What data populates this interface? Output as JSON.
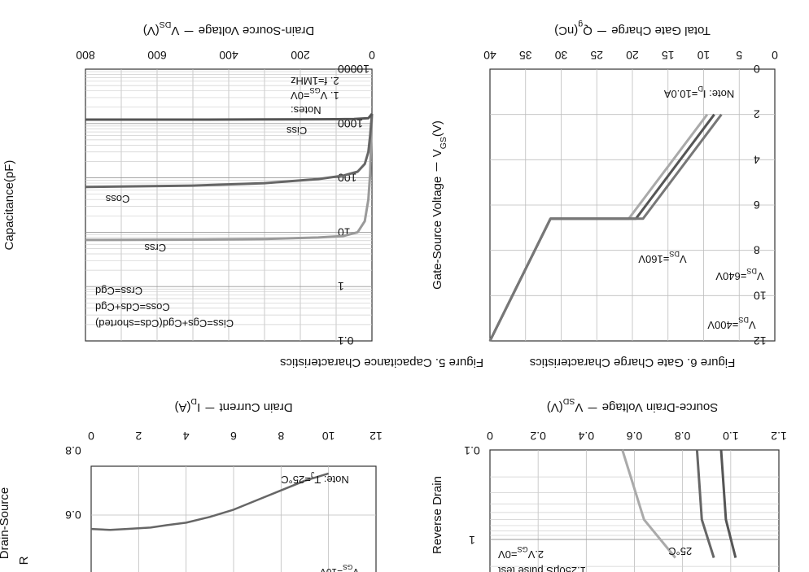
{
  "chart_data": [
    {
      "id": "fig5",
      "type": "line",
      "caption": "Figure 5. Capacitance Characteristics",
      "xlabel": "Drain-Source Voltage － V",
      "xlabel_sub": "DS",
      "xlabel_unit": "(V)",
      "ylabel": "Capacitance(pF)",
      "x_ticks": [
        "0",
        "200",
        "400",
        "600",
        "800"
      ],
      "y_ticks": [
        "0.1",
        "1",
        "10",
        "100",
        "1000",
        "10000"
      ],
      "xlim": [
        0,
        800
      ],
      "ylim": [
        0.1,
        10000
      ],
      "yscale": "log",
      "y_inverted": true,
      "notes": [
        "Notes:",
        "1. V",
        "GS",
        "=0V",
        "2. f=1MHz"
      ],
      "legend": [
        "Ciss=Cgs+Cgd(Cds=shorted)",
        "Coss=Cds+Cgd",
        "Crss=Cgd"
      ],
      "series": [
        {
          "name": "Crss",
          "color": "#9a9a9a",
          "x": [
            0,
            5,
            10,
            20,
            40,
            80,
            150,
            300,
            500,
            800
          ],
          "y": [
            1500,
            120,
            40,
            16,
            10,
            8.5,
            8,
            7.5,
            7.3,
            7.2
          ]
        },
        {
          "name": "Coss",
          "color": "#666666",
          "x": [
            0,
            5,
            10,
            20,
            40,
            80,
            150,
            300,
            500,
            800
          ],
          "y": [
            1500,
            600,
            300,
            180,
            130,
            110,
            95,
            80,
            72,
            68
          ]
        },
        {
          "name": "Ciss",
          "color": "#555555",
          "x": [
            0,
            10,
            50,
            100,
            300,
            500,
            800
          ],
          "y": [
            1500,
            1250,
            1210,
            1200,
            1190,
            1180,
            1180
          ]
        }
      ],
      "labels": [
        {
          "text": "Crss",
          "x": 605,
          "y": 7
        },
        {
          "text": "Coss",
          "x": 710,
          "y": 55
        },
        {
          "text": "Ciss",
          "x": 210,
          "y": 1000
        }
      ]
    },
    {
      "id": "fig6",
      "type": "line",
      "caption": "Figure 6. Gate Charge Characteristics",
      "xlabel": "Total Gate Charge － Q",
      "xlabel_sub": "g",
      "xlabel_unit": "(nC)",
      "ylabel": "Gate-Source Voltage － V",
      "ylabel_sub": "GS",
      "ylabel_unit": "(V)",
      "x_ticks": [
        "0",
        "5",
        "10",
        "15",
        "20",
        "25",
        "30",
        "35",
        "40"
      ],
      "y_ticks": [
        "0",
        "2",
        "4",
        "6",
        "8",
        "10",
        "12"
      ],
      "xlim": [
        0,
        40
      ],
      "ylim": [
        0,
        12
      ],
      "y_inverted": true,
      "note": "Note: I",
      "note_sub": "D",
      "note_val": "=10.0A",
      "series": [
        {
          "name": "V",
          "name_sub": "DS",
          "name_val": "=160V",
          "color": "#aaaaaa",
          "x": [
            0,
            8.5,
            19.5,
            30.5
          ],
          "y": [
            0,
            5.4,
            5.4,
            10.0
          ]
        },
        {
          "name": "V",
          "name_sub": "DS",
          "name_val": "=400V",
          "color": "#555555",
          "x": [
            0,
            8.5,
            20.5,
            31.5
          ],
          "y": [
            0,
            5.4,
            5.4,
            10.0
          ]
        },
        {
          "name": "V",
          "name_sub": "DS",
          "name_val": "=640V",
          "color": "#777777",
          "x": [
            0,
            8.5,
            21.5,
            32.5
          ],
          "y": [
            0,
            5.4,
            5.4,
            10.0
          ]
        }
      ]
    },
    {
      "id": "fig7",
      "type": "line",
      "xlabel": "Drain Current － I",
      "xlabel_sub": "D",
      "xlabel_unit": "(A)",
      "ylabel": "Drain-Source",
      "ylabel2": "R",
      "x_ticks": [
        "0",
        "2",
        "4",
        "6",
        "8",
        "10",
        "12"
      ],
      "y_ticks": [
        "0.8",
        "0.6"
      ],
      "xlim": [
        0,
        12
      ],
      "note": "Note: T",
      "note_sub": "J",
      "note_val": "=25°C",
      "series": [
        {
          "name": "V",
          "name_sub": "GS",
          "name_val": "=10V",
          "color": "#666666",
          "x": [
            0,
            0.8,
            1.5,
            2.5,
            3.2,
            4,
            5,
            6,
            7,
            8,
            9,
            10
          ],
          "y": [
            0.63,
            0.632,
            0.63,
            0.627,
            0.622,
            0.617,
            0.605,
            0.59,
            0.57,
            0.55,
            0.53,
            0.515
          ]
        }
      ]
    },
    {
      "id": "fig8",
      "type": "line",
      "xlabel": "Source-Drain Voltage － V",
      "xlabel_sub": "SD",
      "xlabel_unit": "(V)",
      "ylabel": "Reverse Drain",
      "x_ticks": [
        "0",
        "0.2",
        "0.4",
        "0.6",
        "0.8",
        "1.0",
        "1.2"
      ],
      "y_ticks": [
        "0.1",
        "1"
      ],
      "xlim": [
        0,
        1.2
      ],
      "notes": [
        "1.250μS pulse test",
        "2.V",
        "GS",
        "=0V"
      ],
      "series": [
        {
          "name": "",
          "color": "#aaaaaa",
          "x": [
            0.77,
            0.64,
            0.55
          ],
          "y": [
            1.6,
            0.6,
            0.1
          ]
        },
        {
          "name": "25°C",
          "color": "#666666",
          "x": [
            0.93,
            0.88,
            0.86
          ],
          "y": [
            1.6,
            0.6,
            0.1
          ]
        },
        {
          "name": "",
          "color": "#555555",
          "x": [
            1.02,
            0.98,
            0.96
          ],
          "y": [
            1.6,
            0.6,
            0.1
          ]
        }
      ]
    }
  ]
}
